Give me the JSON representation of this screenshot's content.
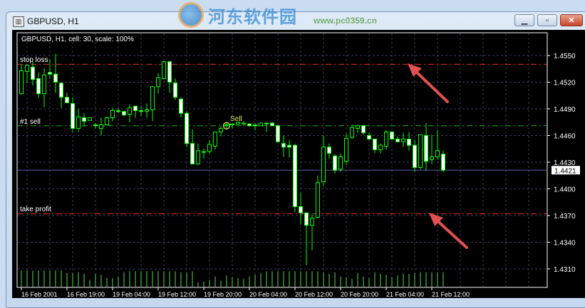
{
  "window": {
    "title": "GBPUSD, H1",
    "buttons": [
      "minimize",
      "restore",
      "close"
    ]
  },
  "watermark": {
    "logo_text": "河东软件园",
    "url_text": "www.pc0359.cn"
  },
  "chart": {
    "info_label": "GBPUSD, H1, cell: 30, scale: 100%",
    "labels": {
      "stop_loss": "stop loss",
      "order": "#1 sell",
      "take_profit": "take profit",
      "sell_marker": "Sell"
    },
    "colors": {
      "background": "#000000",
      "bull": "#00ff00",
      "bear_fill": "#ffffff",
      "stop_loss": "#cc2222",
      "order": "#1e8a1e",
      "take_profit": "#cc2222",
      "bid_line": "#5a5aa0",
      "grid": "#3a3a5a",
      "volume": "#55dd55",
      "sell_marker": "#e8e860",
      "arrow": "#e05050"
    },
    "levels": {
      "stop_loss": 1.454,
      "order_open": 1.4471,
      "take_profit": 1.4372,
      "bid": 1.4421
    },
    "current_price_label": "1.4421",
    "price_ticks": [
      "1.4550",
      "1.4520",
      "1.4490",
      "1.4460",
      "1.4430",
      "1.4400",
      "1.4370",
      "1.4340",
      "1.4310"
    ],
    "time_ticks": [
      "16 Feb 2001",
      "16 Feb 19:00",
      "19 Feb 04:00",
      "19 Feb 12:00",
      "19 Feb 20:00",
      "20 Feb 04:00",
      "20 Feb 12:00",
      "20 Feb 20:00",
      "21 Feb 04:00",
      "21 Feb 12:00"
    ],
    "sell_bar_index": 36
  },
  "chart_data": {
    "type": "candlestick",
    "symbol": "GBPUSD",
    "timeframe": "H1",
    "ylim": [
      1.4295,
      1.4568
    ],
    "grid": true,
    "ohlc": [
      [
        1.4507,
        1.454,
        1.4506,
        1.4533
      ],
      [
        1.4532,
        1.454,
        1.4519,
        1.4539
      ],
      [
        1.4537,
        1.4543,
        1.4516,
        1.4523
      ],
      [
        1.4524,
        1.4531,
        1.4502,
        1.4507
      ],
      [
        1.4507,
        1.4536,
        1.4492,
        1.4528
      ],
      [
        1.4531,
        1.4546,
        1.4524,
        1.4529
      ],
      [
        1.4529,
        1.4552,
        1.4508,
        1.452
      ],
      [
        1.4519,
        1.4519,
        1.4491,
        1.4503
      ],
      [
        1.4503,
        1.4508,
        1.4496,
        1.4497
      ],
      [
        1.4496,
        1.4503,
        1.4464,
        1.4468
      ],
      [
        1.4468,
        1.449,
        1.4464,
        1.4481
      ],
      [
        1.448,
        1.4485,
        1.447,
        1.4476
      ],
      [
        1.4477,
        1.448,
        1.4477,
        1.448
      ],
      [
        1.4472,
        1.4474,
        1.4468,
        1.4471
      ],
      [
        1.4468,
        1.448,
        1.446,
        1.4472
      ],
      [
        1.4472,
        1.4481,
        1.4471,
        1.448
      ],
      [
        1.448,
        1.4491,
        1.4476,
        1.4488
      ],
      [
        1.4488,
        1.4491,
        1.4485,
        1.4487
      ],
      [
        1.4487,
        1.4488,
        1.4482,
        1.4483
      ],
      [
        1.4484,
        1.4495,
        1.4475,
        1.4491
      ],
      [
        1.4493,
        1.4493,
        1.448,
        1.4488
      ],
      [
        1.4488,
        1.4493,
        1.4482,
        1.4487
      ],
      [
        1.4487,
        1.4496,
        1.448,
        1.4489
      ],
      [
        1.4489,
        1.4515,
        1.4476,
        1.4515
      ],
      [
        1.4515,
        1.453,
        1.4507,
        1.4525
      ],
      [
        1.4524,
        1.4544,
        1.4523,
        1.4543
      ],
      [
        1.4543,
        1.4544,
        1.4508,
        1.452
      ],
      [
        1.4519,
        1.4524,
        1.45,
        1.4503
      ],
      [
        1.4501,
        1.4503,
        1.448,
        1.4485
      ],
      [
        1.4485,
        1.4487,
        1.4447,
        1.4451
      ],
      [
        1.4451,
        1.4467,
        1.4428,
        1.4428
      ],
      [
        1.4428,
        1.4451,
        1.4427,
        1.4443
      ],
      [
        1.4441,
        1.4445,
        1.4434,
        1.4442
      ],
      [
        1.4442,
        1.4455,
        1.444,
        1.445
      ],
      [
        1.4448,
        1.4464,
        1.4444,
        1.4464
      ],
      [
        1.4464,
        1.4471,
        1.4459,
        1.4468
      ],
      [
        1.4471,
        1.4474,
        1.4467,
        1.4472
      ],
      [
        1.4472,
        1.4474,
        1.4468,
        1.4473
      ],
      [
        1.4473,
        1.4475,
        1.4472,
        1.4475
      ],
      [
        1.4473,
        1.4476,
        1.4471,
        1.4474
      ],
      [
        1.4473,
        1.4474,
        1.447,
        1.4471
      ],
      [
        1.4472,
        1.4474,
        1.4466,
        1.4471
      ],
      [
        1.4471,
        1.4474,
        1.4471,
        1.4474
      ],
      [
        1.4474,
        1.4474,
        1.4464,
        1.4473
      ],
      [
        1.4474,
        1.4475,
        1.447,
        1.4471
      ],
      [
        1.4471,
        1.4472,
        1.4452,
        1.4453
      ],
      [
        1.4451,
        1.446,
        1.4436,
        1.4447
      ],
      [
        1.4449,
        1.4455,
        1.4435,
        1.4447
      ],
      [
        1.4449,
        1.4451,
        1.4374,
        1.438
      ],
      [
        1.438,
        1.4396,
        1.436,
        1.4373
      ],
      [
        1.4373,
        1.4373,
        1.4314,
        1.4359
      ],
      [
        1.4359,
        1.4372,
        1.4331,
        1.4367
      ],
      [
        1.4368,
        1.4415,
        1.4367,
        1.4407
      ],
      [
        1.4408,
        1.446,
        1.4403,
        1.4447
      ],
      [
        1.4447,
        1.4451,
        1.4434,
        1.444
      ],
      [
        1.4437,
        1.4439,
        1.4417,
        1.4421
      ],
      [
        1.4422,
        1.444,
        1.4419,
        1.4436
      ],
      [
        1.4431,
        1.4462,
        1.4427,
        1.4457
      ],
      [
        1.4458,
        1.4472,
        1.4456,
        1.4469
      ],
      [
        1.4468,
        1.4472,
        1.4463,
        1.4471
      ],
      [
        1.4471,
        1.4472,
        1.4461,
        1.4463
      ],
      [
        1.446,
        1.4463,
        1.4455,
        1.4456
      ],
      [
        1.4456,
        1.4456,
        1.444,
        1.4444
      ],
      [
        1.4444,
        1.4451,
        1.444,
        1.4449
      ],
      [
        1.4448,
        1.4466,
        1.4444,
        1.4464
      ],
      [
        1.4464,
        1.4464,
        1.4455,
        1.4456
      ],
      [
        1.4456,
        1.4459,
        1.4452,
        1.4453
      ],
      [
        1.4453,
        1.4463,
        1.4447,
        1.4456
      ],
      [
        1.4456,
        1.4464,
        1.4443,
        1.4449
      ],
      [
        1.4449,
        1.4455,
        1.4419,
        1.4424
      ],
      [
        1.4424,
        1.4461,
        1.4422,
        1.4461
      ],
      [
        1.446,
        1.4474,
        1.442,
        1.4431
      ],
      [
        1.4433,
        1.4461,
        1.4428,
        1.4436
      ],
      [
        1.4436,
        1.4466,
        1.4433,
        1.4443
      ],
      [
        1.4439,
        1.4443,
        1.4419,
        1.4421
      ]
    ],
    "volume_relative": [
      95,
      95,
      95,
      95,
      95,
      95,
      95,
      95,
      80,
      80,
      85,
      75,
      40,
      75,
      70,
      50,
      50,
      60,
      85,
      90,
      90,
      90,
      90,
      90,
      90,
      90,
      90,
      90,
      85,
      85,
      90,
      25,
      30,
      40,
      60,
      35,
      65,
      55,
      50,
      45,
      60,
      70,
      80,
      90,
      90,
      90,
      90,
      90,
      90,
      90,
      90,
      90,
      90,
      85,
      75,
      85,
      60,
      55,
      45,
      80,
      60,
      50,
      85,
      75,
      70,
      55,
      65,
      75,
      75,
      80,
      85,
      85,
      85,
      85,
      85
    ]
  }
}
